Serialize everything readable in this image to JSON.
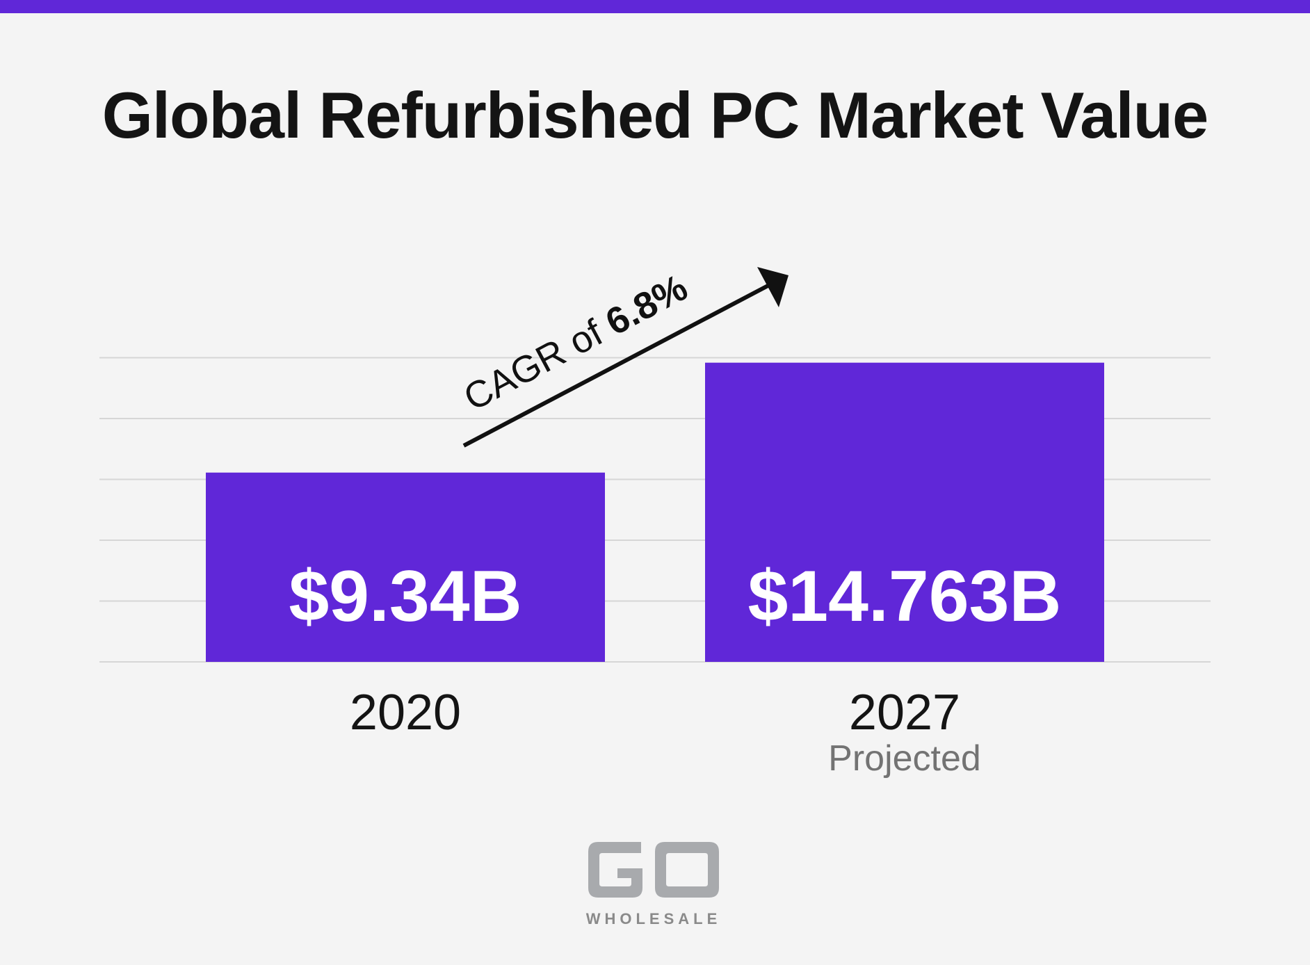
{
  "header": {
    "title": "Global Refurbished PC Market Value",
    "accent_color": "#6027d8"
  },
  "chart_data": {
    "type": "bar",
    "title": "Global Refurbished PC Market Value",
    "categories": [
      "2020",
      "2027"
    ],
    "category_sublabels": [
      "",
      "Projected"
    ],
    "values": [
      9.34,
      14.763
    ],
    "value_labels": [
      "$9.34B",
      "$14.763B"
    ],
    "unit": "billion USD",
    "ylim": [
      0,
      15
    ],
    "grid": true,
    "bar_color": "#6027d8",
    "annotation": {
      "text": "CAGR of ",
      "emphasis": "6.8%",
      "type": "arrow"
    }
  },
  "logo": {
    "mark": "GO",
    "word": "WHOLESALE",
    "color": "#a8aaad"
  }
}
